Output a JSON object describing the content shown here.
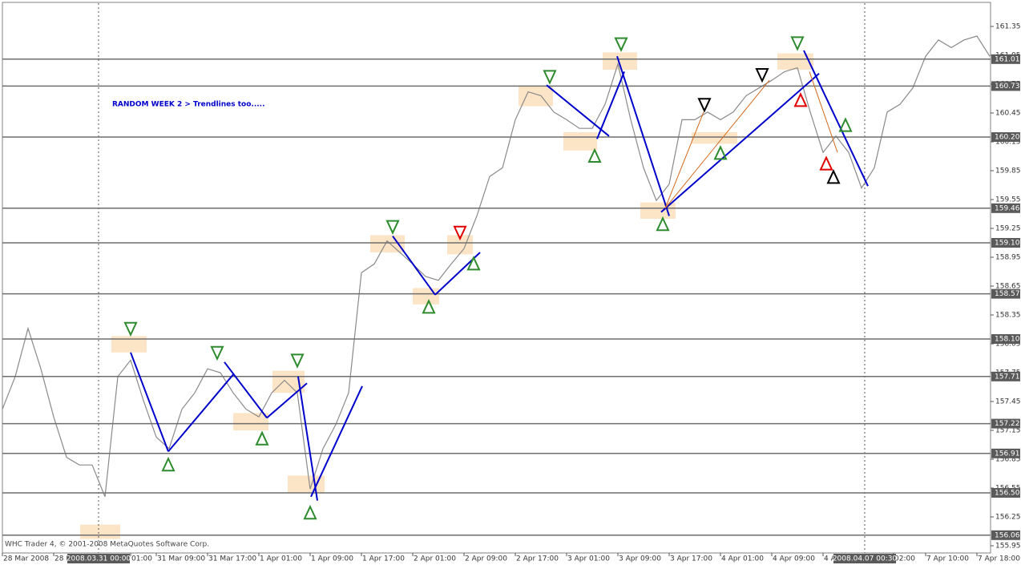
{
  "chart_data": {
    "type": "line",
    "annotation": "RANDOM WEEK 2 > Trendlines too.....",
    "footer": "WHC Trader 4, © 2001-2008 MetaQuotes Software Corp.",
    "xlim": [
      0,
      308
    ],
    "ylim": [
      155.875,
      161.625
    ],
    "yticks": [
      155.95,
      156.25,
      156.55,
      156.85,
      157.15,
      157.45,
      157.75,
      158.05,
      158.35,
      158.65,
      158.95,
      159.25,
      159.55,
      159.85,
      160.15,
      160.45,
      160.75,
      161.05,
      161.35
    ],
    "xticks": [
      {
        "value": 0,
        "label": "28 Mar 2008"
      },
      {
        "value": 16,
        "label": "28 M"
      },
      {
        "value": 40,
        "label": "01:00"
      },
      {
        "value": 48,
        "label": "31 Mar 09:00"
      },
      {
        "value": 64,
        "label": "31 Mar 17:00"
      },
      {
        "value": 80,
        "label": "1 Apr 01:00"
      },
      {
        "value": 96,
        "label": "1 Apr 09:00"
      },
      {
        "value": 112,
        "label": "1 Apr 17:00"
      },
      {
        "value": 128,
        "label": "2 Apr 01:00"
      },
      {
        "value": 144,
        "label": "2 Apr 09:00"
      },
      {
        "value": 160,
        "label": "2 Apr 17:00"
      },
      {
        "value": 176,
        "label": "3 Apr 01:00"
      },
      {
        "value": 192,
        "label": "3 Apr 09:00"
      },
      {
        "value": 208,
        "label": "3 Apr 17:00"
      },
      {
        "value": 224,
        "label": "4 Apr 01:00"
      },
      {
        "value": 240,
        "label": "4 Apr 09:00"
      },
      {
        "value": 256,
        "label": "4 A"
      },
      {
        "value": 278,
        "label": "02:00"
      },
      {
        "value": 288,
        "label": "7 Apr 10:00"
      },
      {
        "value": 304,
        "label": "7 Apr 18:00"
      }
    ],
    "cursors": [
      {
        "x": 30,
        "label": "2008.03.31 00:00"
      },
      {
        "x": 269,
        "label": "2008.04.07 00:30"
      }
    ],
    "levels": [
      {
        "value": 161.01,
        "label": "161.01"
      },
      {
        "value": 160.73,
        "label": "160.73"
      },
      {
        "value": 160.2,
        "label": "160.20"
      },
      {
        "value": 159.46,
        "label": "159.46"
      },
      {
        "value": 159.1,
        "label": "159.10"
      },
      {
        "value": 158.57,
        "label": "158.57"
      },
      {
        "value": 158.1,
        "label": "158.10"
      },
      {
        "value": 157.71,
        "label": "157.71"
      },
      {
        "value": 157.22,
        "label": "157.22"
      },
      {
        "value": 156.91,
        "label": "156.91"
      },
      {
        "value": 156.5,
        "label": "156.50"
      },
      {
        "value": 156.06,
        "label": "156.06"
      }
    ],
    "series": [
      {
        "color": "#8a8a8a",
        "x": [
          0,
          4,
          8,
          12,
          16,
          20,
          24,
          28,
          32,
          36,
          40,
          44,
          48,
          52,
          56,
          60,
          64,
          68,
          72,
          76,
          80,
          84,
          88,
          92,
          96,
          100,
          104,
          108,
          112,
          116,
          120,
          124,
          128,
          132,
          136,
          140,
          144,
          148,
          152,
          156,
          160,
          164,
          168,
          172,
          176,
          180,
          184,
          188,
          192,
          196,
          200,
          204,
          208,
          212,
          216,
          220,
          224,
          228,
          232,
          236,
          240,
          244,
          248,
          252,
          256,
          260,
          264,
          268,
          272,
          276,
          280,
          284,
          288,
          292,
          296,
          300,
          304,
          308
        ],
        "values": [
          157.37,
          157.71,
          158.21,
          157.79,
          157.29,
          156.87,
          156.79,
          156.79,
          156.46,
          157.71,
          157.88,
          157.46,
          157.08,
          156.96,
          157.37,
          157.54,
          157.79,
          157.75,
          157.54,
          157.37,
          157.29,
          157.54,
          157.67,
          157.54,
          156.54,
          156.96,
          157.21,
          157.54,
          158.79,
          158.88,
          159.12,
          159.0,
          158.88,
          158.75,
          158.71,
          158.88,
          159.04,
          159.38,
          159.79,
          159.88,
          160.38,
          160.67,
          160.63,
          160.46,
          160.38,
          160.29,
          160.29,
          160.54,
          160.96,
          160.38,
          159.88,
          159.54,
          159.71,
          160.38,
          160.38,
          160.46,
          160.38,
          160.46,
          160.63,
          160.71,
          160.79,
          160.88,
          160.92,
          160.46,
          160.04,
          160.21,
          160.04,
          159.67,
          159.88,
          160.46,
          160.54,
          160.71,
          161.04,
          161.21,
          161.13,
          161.21,
          161.25,
          161.04
        ]
      }
    ],
    "zones": [
      {
        "x0": 34,
        "x1": 45,
        "y0": 157.96,
        "y1": 158.13
      },
      {
        "x0": 24.25,
        "x1": 36.75,
        "y0": 156.02,
        "y1": 156.17
      },
      {
        "x0": 72,
        "x1": 83,
        "y0": 157.15,
        "y1": 157.33
      },
      {
        "x0": 84.25,
        "x1": 94.25,
        "y0": 157.54,
        "y1": 157.77
      },
      {
        "x0": 89,
        "x1": 100.5,
        "y0": 156.5,
        "y1": 156.68
      },
      {
        "x0": 114.75,
        "x1": 125.5,
        "y0": 159.0,
        "y1": 159.18
      },
      {
        "x0": 128,
        "x1": 136.25,
        "y0": 158.46,
        "y1": 158.63
      },
      {
        "x0": 138.75,
        "x1": 146.75,
        "y0": 158.98,
        "y1": 159.18
      },
      {
        "x0": 161,
        "x1": 171.75,
        "y0": 160.52,
        "y1": 160.73
      },
      {
        "x0": 175,
        "x1": 185.5,
        "y0": 160.06,
        "y1": 160.25
      },
      {
        "x0": 187.25,
        "x1": 198,
        "y0": 160.9,
        "y1": 161.08
      },
      {
        "x0": 199,
        "x1": 210,
        "y0": 159.35,
        "y1": 159.52
      },
      {
        "x0": 241.75,
        "x1": 253,
        "y0": 160.9,
        "y1": 161.07
      },
      {
        "x0": 215,
        "x1": 229.25,
        "y0": 160.13,
        "y1": 160.25
      }
    ],
    "trendlines": [
      {
        "x0": 40,
        "y0": 157.96,
        "x1": 51.75,
        "y1": 156.93,
        "color": "#0000cc"
      },
      {
        "x0": 51.75,
        "y0": 156.93,
        "x1": 72.25,
        "y1": 157.74,
        "color": "#0000cc"
      },
      {
        "x0": 69.25,
        "y0": 157.86,
        "x1": 82.5,
        "y1": 157.28,
        "color": "#0000cc"
      },
      {
        "x0": 82.5,
        "y0": 157.28,
        "x1": 95,
        "y1": 157.64,
        "color": "#0000cc"
      },
      {
        "x0": 92.25,
        "y0": 157.71,
        "x1": 98.25,
        "y1": 156.42,
        "color": "#0000cc"
      },
      {
        "x0": 96.25,
        "y0": 156.46,
        "x1": 112.25,
        "y1": 157.61,
        "color": "#0000cc"
      },
      {
        "x0": 121.75,
        "y0": 159.17,
        "x1": 135,
        "y1": 158.56,
        "color": "#0000cc"
      },
      {
        "x0": 135,
        "y0": 158.56,
        "x1": 149,
        "y1": 159.0,
        "color": "#0000cc"
      },
      {
        "x0": 169.75,
        "y0": 160.74,
        "x1": 189.25,
        "y1": 160.21,
        "color": "#0000cc"
      },
      {
        "x0": 185.5,
        "y0": 160.18,
        "x1": 194,
        "y1": 160.88,
        "color": "#0000cc"
      },
      {
        "x0": 191.75,
        "y0": 161.04,
        "x1": 208,
        "y1": 159.38,
        "color": "#0000cc"
      },
      {
        "x0": 205.5,
        "y0": 159.42,
        "x1": 254.75,
        "y1": 160.86,
        "color": "#0000cc"
      },
      {
        "x0": 250,
        "y0": 161.1,
        "x1": 270,
        "y1": 159.69,
        "color": "#0000cc"
      },
      {
        "x0": 206.75,
        "y0": 159.46,
        "x1": 218.75,
        "y1": 160.46,
        "color": "#d2691e"
      },
      {
        "x0": 206.75,
        "y0": 159.46,
        "x1": 239.25,
        "y1": 160.79,
        "color": "#d2691e"
      },
      {
        "x0": 251.75,
        "y0": 160.88,
        "x1": 260.5,
        "y1": 160.04,
        "color": "#d2691e"
      }
    ],
    "signals": [
      {
        "x": 40,
        "y": 158.21,
        "dir": "down",
        "color": "#2e8b2e"
      },
      {
        "x": 67,
        "y": 157.96,
        "dir": "down",
        "color": "#2e8b2e"
      },
      {
        "x": 92,
        "y": 157.88,
        "dir": "down",
        "color": "#2e8b2e"
      },
      {
        "x": 121.75,
        "y": 159.27,
        "dir": "down",
        "color": "#2e8b2e"
      },
      {
        "x": 170.75,
        "y": 160.83,
        "dir": "down",
        "color": "#2e8b2e"
      },
      {
        "x": 193,
        "y": 161.17,
        "dir": "down",
        "color": "#2e8b2e"
      },
      {
        "x": 248,
        "y": 161.18,
        "dir": "down",
        "color": "#2e8b2e"
      },
      {
        "x": 142.75,
        "y": 159.21,
        "dir": "down",
        "color": "#e00000"
      },
      {
        "x": 219,
        "y": 160.54,
        "dir": "down",
        "color": "#000000"
      },
      {
        "x": 237,
        "y": 160.85,
        "dir": "down",
        "color": "#000000"
      },
      {
        "x": 51.75,
        "y": 156.79,
        "dir": "up",
        "color": "#2e8b2e"
      },
      {
        "x": 81,
        "y": 157.06,
        "dir": "up",
        "color": "#2e8b2e"
      },
      {
        "x": 96,
        "y": 156.29,
        "dir": "up",
        "color": "#2e8b2e"
      },
      {
        "x": 133,
        "y": 158.43,
        "dir": "up",
        "color": "#2e8b2e"
      },
      {
        "x": 147,
        "y": 158.88,
        "dir": "up",
        "color": "#2e8b2e"
      },
      {
        "x": 184.75,
        "y": 160.0,
        "dir": "up",
        "color": "#2e8b2e"
      },
      {
        "x": 206,
        "y": 159.29,
        "dir": "up",
        "color": "#2e8b2e"
      },
      {
        "x": 224,
        "y": 160.03,
        "dir": "up",
        "color": "#2e8b2e"
      },
      {
        "x": 263,
        "y": 160.32,
        "dir": "up",
        "color": "#2e8b2e"
      },
      {
        "x": 249,
        "y": 160.58,
        "dir": "up",
        "color": "#e00000"
      },
      {
        "x": 257,
        "y": 159.92,
        "dir": "up",
        "color": "#e00000"
      },
      {
        "x": 259.25,
        "y": 159.78,
        "dir": "up",
        "color": "#000000"
      }
    ]
  }
}
